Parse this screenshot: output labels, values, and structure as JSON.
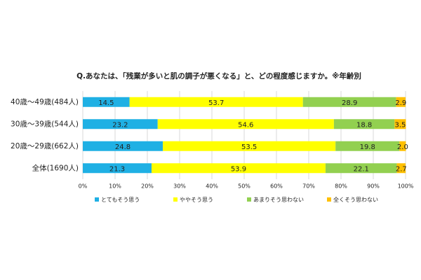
{
  "chart_data": {
    "type": "stacked-bar-horizontal",
    "title": "Q.あなたは、「残業が多いと肌の調子が悪くなる」と、どの程度感じますか。※年齢別",
    "categories": [
      "40歳～49歳(484人)",
      "30歳～39歳(544人)",
      "20歳～29歳(662人)",
      "全体(1690人)"
    ],
    "series": [
      {
        "name": "とてもそう思う",
        "color": "#1fb0e4",
        "values": [
          14.5,
          23.2,
          24.8,
          21.3
        ]
      },
      {
        "name": "ややそう思う",
        "color": "#ffff00",
        "values": [
          53.7,
          54.6,
          53.5,
          53.9
        ]
      },
      {
        "name": "あまりそう思わない",
        "color": "#92d050",
        "values": [
          28.9,
          18.8,
          19.8,
          22.1
        ]
      },
      {
        "name": "全くそう思わない",
        "color": "#ffc000",
        "values": [
          2.9,
          3.5,
          2.0,
          2.7
        ],
        "value_labels": [
          "2.9",
          "3.5",
          "2.0",
          "2.7"
        ]
      }
    ],
    "xlim": [
      0,
      100
    ],
    "xticks": [
      {
        "value": 0,
        "label": "0%"
      },
      {
        "value": 10,
        "label": "10%"
      },
      {
        "value": 20,
        "label": "20%"
      },
      {
        "value": 30,
        "label": "30%"
      },
      {
        "value": 40,
        "label": "40%"
      },
      {
        "value": 50,
        "label": "50%"
      },
      {
        "value": 60,
        "label": "60%"
      },
      {
        "value": 70,
        "label": "70%"
      },
      {
        "value": 80,
        "label": "80%"
      },
      {
        "value": 90,
        "label": "90%"
      },
      {
        "value": 100,
        "label": "100%"
      }
    ],
    "grid": true
  }
}
